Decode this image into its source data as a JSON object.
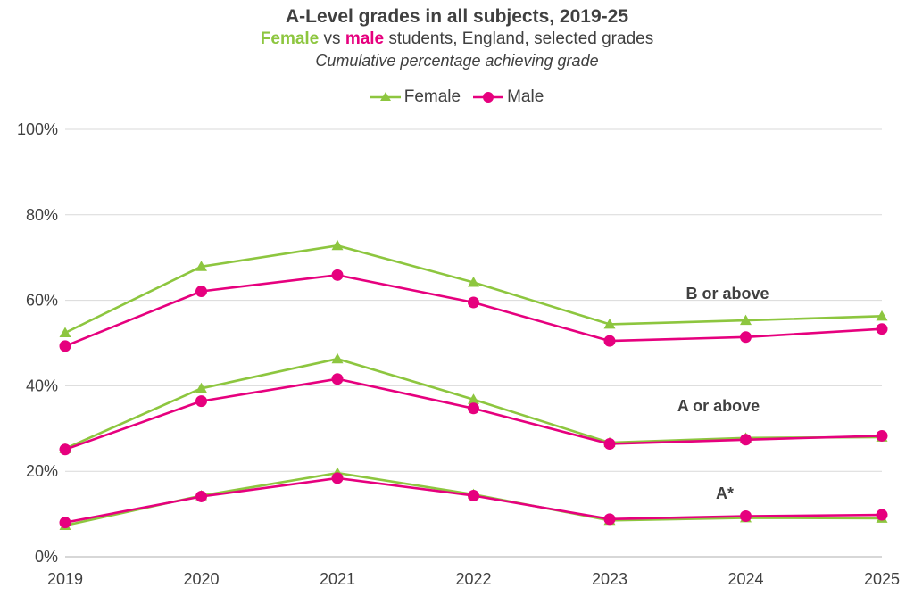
{
  "header": {
    "title": "A-Level grades in all subjects, 2019-25",
    "subtitle_female": "Female",
    "subtitle_vs": " vs ",
    "subtitle_male": "male",
    "subtitle_rest": " students, England, selected grades",
    "note": "Cumulative percentage achieving grade"
  },
  "colors": {
    "female": "#8DC63F",
    "male": "#E6007E",
    "grid": "#D9D9D9",
    "axis": "#BFBFBF"
  },
  "chart_data": {
    "type": "line",
    "x": [
      "2019",
      "2020",
      "2021",
      "2022",
      "2023",
      "2024",
      "2025"
    ],
    "ylim": [
      0,
      100
    ],
    "yticks": [
      0,
      20,
      40,
      60,
      80,
      100
    ],
    "ytick_labels": [
      "0%",
      "20%",
      "40%",
      "60%",
      "80%",
      "100%"
    ],
    "legend": {
      "position": "top",
      "entries": [
        "Female",
        "Male"
      ]
    },
    "grid": true,
    "groups": [
      {
        "label": "B or above",
        "female": [
          52.4,
          67.9,
          72.8,
          64.2,
          54.4,
          55.3,
          56.3
        ],
        "male": [
          49.3,
          62.1,
          65.9,
          59.5,
          50.5,
          51.4,
          53.3
        ]
      },
      {
        "label": "A or above",
        "female": [
          25.3,
          39.4,
          46.3,
          36.8,
          26.7,
          27.8,
          28.0
        ],
        "male": [
          25.1,
          36.4,
          41.6,
          34.7,
          26.4,
          27.4,
          28.3
        ]
      },
      {
        "label": "A*",
        "female": [
          7.3,
          14.3,
          19.6,
          14.6,
          8.5,
          9.1,
          9.0
        ],
        "male": [
          8.0,
          14.1,
          18.4,
          14.3,
          8.8,
          9.5,
          9.8
        ]
      }
    ]
  }
}
